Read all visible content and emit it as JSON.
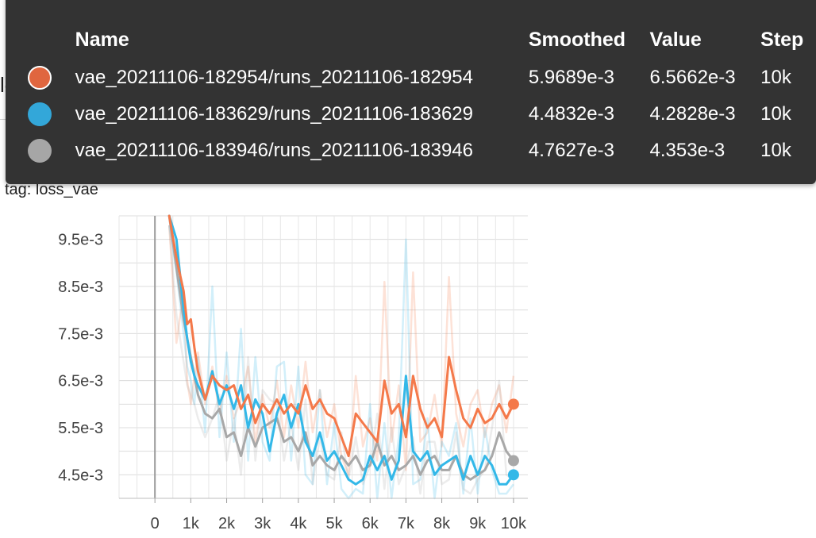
{
  "background_title": "loss_vae",
  "card": {
    "title": "loss_vae",
    "tag": "tag: loss_vae"
  },
  "tooltip": {
    "headers": {
      "name": "Name",
      "smoothed": "Smoothed",
      "value": "Value",
      "step": "Step"
    },
    "rows": [
      {
        "color": "#e0663f",
        "name": "vae_20211106-182954/runs_20211106-182954",
        "smoothed": "5.9689e-3",
        "value": "6.5662e-3",
        "step": "10k",
        "selected": true
      },
      {
        "color": "#33a7d9",
        "name": "vae_20211106-183629/runs_20211106-183629",
        "smoothed": "4.4832e-3",
        "value": "4.2828e-3",
        "step": "10k",
        "selected": false
      },
      {
        "color": "#a6a6a6",
        "name": "vae_20211106-183946/runs_20211106-183946",
        "smoothed": "4.7627e-3",
        "value": "4.353e-3",
        "step": "10k",
        "selected": false
      }
    ]
  },
  "chart_data": {
    "type": "line",
    "title": "loss_vae",
    "xlabel": "",
    "ylabel": "",
    "xlim": [
      -1000,
      10400
    ],
    "ylim": [
      0.004,
      0.01
    ],
    "x_ticks": [
      0,
      1000,
      2000,
      3000,
      4000,
      5000,
      6000,
      7000,
      8000,
      9000,
      10000
    ],
    "x_tick_labels": [
      "0",
      "1k",
      "2k",
      "3k",
      "4k",
      "5k",
      "6k",
      "7k",
      "8k",
      "9k",
      "10k"
    ],
    "y_ticks": [
      0.0045,
      0.0055,
      0.0065,
      0.0075,
      0.0085,
      0.0095
    ],
    "y_tick_labels": [
      "4.5e-3",
      "5.5e-3",
      "6.5e-3",
      "7.5e-3",
      "8.5e-3",
      "9.5e-3"
    ],
    "grid": true,
    "series": [
      {
        "name": "vae_20211106-182954/runs_20211106-182954",
        "color": "#f4794a",
        "x": [
          400,
          600,
          800,
          900,
          1000,
          1100,
          1200,
          1400,
          1600,
          1800,
          2000,
          2200,
          2400,
          2600,
          2800,
          3000,
          3200,
          3400,
          3600,
          3800,
          4000,
          4200,
          4400,
          4600,
          4800,
          5000,
          5200,
          5400,
          5600,
          5800,
          6000,
          6200,
          6400,
          6600,
          6800,
          7000,
          7200,
          7400,
          7600,
          7800,
          8000,
          8200,
          8400,
          8600,
          8800,
          9000,
          9200,
          9400,
          9600,
          9800,
          10000
        ],
        "values": [
          0.01,
          0.0091,
          0.0084,
          0.0077,
          0.0078,
          0.0072,
          0.0067,
          0.0061,
          0.0066,
          0.0064,
          0.0063,
          0.0064,
          0.0059,
          0.0062,
          0.0056,
          0.006,
          0.0058,
          0.0061,
          0.0058,
          0.006,
          0.0058,
          0.0064,
          0.0059,
          0.0061,
          0.0058,
          0.0057,
          0.0053,
          0.0049,
          0.0058,
          0.0056,
          0.0054,
          0.0052,
          0.0065,
          0.0058,
          0.006,
          0.0053,
          0.0066,
          0.0059,
          0.0055,
          0.0057,
          0.0053,
          0.007,
          0.0063,
          0.0057,
          0.0055,
          0.0059,
          0.0056,
          0.0057,
          0.006,
          0.0057,
          0.006
        ]
      },
      {
        "name": "vae_20211106-183629/runs_20211106-183629",
        "color": "#33b8e8",
        "x": [
          400,
          600,
          800,
          900,
          1000,
          1100,
          1200,
          1400,
          1600,
          1800,
          2000,
          2200,
          2400,
          2600,
          2800,
          3000,
          3200,
          3400,
          3600,
          3800,
          4000,
          4200,
          4400,
          4600,
          4800,
          5000,
          5200,
          5400,
          5600,
          5800,
          6000,
          6200,
          6400,
          6600,
          6800,
          7000,
          7200,
          7400,
          7600,
          7800,
          8000,
          8200,
          8400,
          8600,
          8800,
          9000,
          9200,
          9400,
          9600,
          9800,
          10000
        ],
        "values": [
          0.01,
          0.0095,
          0.008,
          0.0074,
          0.0069,
          0.0066,
          0.0064,
          0.0061,
          0.0067,
          0.006,
          0.0064,
          0.0059,
          0.0064,
          0.0055,
          0.0061,
          0.0058,
          0.005,
          0.0058,
          0.0062,
          0.0055,
          0.006,
          0.0052,
          0.0049,
          0.0054,
          0.0048,
          0.005,
          0.0047,
          0.0044,
          0.0043,
          0.0044,
          0.0049,
          0.0046,
          0.0049,
          0.0044,
          0.0048,
          0.0066,
          0.005,
          0.0048,
          0.005,
          0.0045,
          0.0047,
          0.0048,
          0.0049,
          0.0044,
          0.0049,
          0.0045,
          0.0049,
          0.0047,
          0.0043,
          0.0043,
          0.0045
        ]
      },
      {
        "name": "vae_20211106-183946/runs_20211106-183946",
        "color": "#a8a8a8",
        "x": [
          400,
          600,
          800,
          900,
          1000,
          1100,
          1200,
          1400,
          1600,
          1800,
          2000,
          2200,
          2400,
          2600,
          2800,
          3000,
          3200,
          3400,
          3600,
          3800,
          4000,
          4200,
          4400,
          4600,
          4800,
          5000,
          5200,
          5400,
          5600,
          5800,
          6000,
          6200,
          6400,
          6600,
          6800,
          7000,
          7200,
          7400,
          7600,
          7800,
          8000,
          8200,
          8400,
          8600,
          8800,
          9000,
          9200,
          9400,
          9600,
          9800,
          10000
        ],
        "values": [
          0.01,
          0.0089,
          0.0078,
          0.0074,
          0.007,
          0.0066,
          0.0062,
          0.0058,
          0.0057,
          0.0059,
          0.0053,
          0.0054,
          0.0049,
          0.0055,
          0.0051,
          0.0055,
          0.0056,
          0.0057,
          0.0052,
          0.0053,
          0.005,
          0.0054,
          0.0047,
          0.0049,
          0.0047,
          0.0046,
          0.0049,
          0.0047,
          0.0049,
          0.0046,
          0.0047,
          0.0052,
          0.0047,
          0.0049,
          0.0046,
          0.0047,
          0.0049,
          0.0045,
          0.0048,
          0.0049,
          0.0046,
          0.0046,
          0.0049,
          0.0045,
          0.0044,
          0.0045,
          0.0046,
          0.0049,
          0.0054,
          0.005,
          0.0048
        ]
      }
    ],
    "raw_series": [
      {
        "color": "#f4794a",
        "values": [
          0.0098,
          0.0073,
          0.0084,
          0.0065,
          0.006,
          0.0066,
          0.0071,
          0.006,
          0.0068,
          0.0058,
          0.0066,
          0.0057,
          0.0061,
          0.0068,
          0.0052,
          0.0062,
          0.0055,
          0.0065,
          0.0053,
          0.0064,
          0.0055,
          0.0069,
          0.0054,
          0.0063,
          0.0053,
          0.006,
          0.0049,
          0.0045,
          0.0066,
          0.0051,
          0.0057,
          0.0048,
          0.0086,
          0.0052,
          0.0064,
          0.0046,
          0.0088,
          0.0052,
          0.0054,
          0.0062,
          0.0051,
          0.0087,
          0.0058,
          0.0051,
          0.006,
          0.0063,
          0.0053,
          0.006,
          0.0064,
          0.0054,
          0.0066
        ]
      },
      {
        "color": "#33b8e8",
        "values": [
          0.0098,
          0.0088,
          0.0075,
          0.0068,
          0.0065,
          0.006,
          0.007,
          0.0054,
          0.0085,
          0.0053,
          0.0071,
          0.0052,
          0.0076,
          0.0048,
          0.007,
          0.0052,
          0.0048,
          0.0068,
          0.0069,
          0.0048,
          0.0068,
          0.0045,
          0.0043,
          0.0063,
          0.0043,
          0.0056,
          0.0042,
          0.004,
          0.0042,
          0.0041,
          0.006,
          0.004,
          0.0056,
          0.004,
          0.0053,
          0.0095,
          0.0043,
          0.0044,
          0.0057,
          0.004,
          0.0052,
          0.0049,
          0.0056,
          0.0041,
          0.0057,
          0.0041,
          0.0055,
          0.0046,
          0.0041,
          0.0041,
          0.0043
        ]
      },
      {
        "color": "#a8a8a8",
        "values": [
          0.0098,
          0.0079,
          0.0069,
          0.0064,
          0.0062,
          0.006,
          0.0057,
          0.0053,
          0.0057,
          0.0062,
          0.0048,
          0.0057,
          0.0045,
          0.007,
          0.0048,
          0.0063,
          0.0061,
          0.006,
          0.0048,
          0.0056,
          0.0046,
          0.0061,
          0.0043,
          0.0053,
          0.0045,
          0.0044,
          0.0054,
          0.0044,
          0.0053,
          0.0043,
          0.0047,
          0.0058,
          0.0042,
          0.0055,
          0.0043,
          0.0047,
          0.0053,
          0.0041,
          0.0052,
          0.0052,
          0.0043,
          0.0044,
          0.0054,
          0.0042,
          0.0041,
          0.0044,
          0.0046,
          0.0055,
          0.0065,
          0.0045,
          0.0044
        ]
      }
    ]
  }
}
